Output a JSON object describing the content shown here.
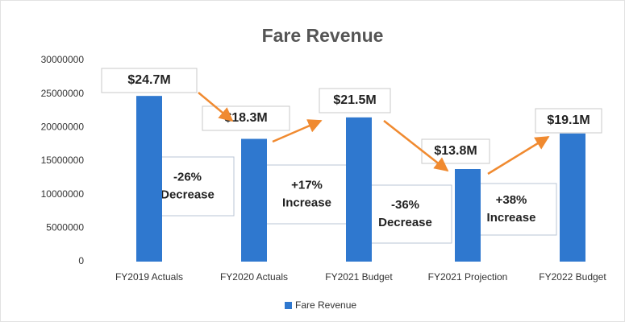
{
  "chart_data": {
    "type": "bar",
    "title": "Fare Revenue",
    "categories": [
      "FY2019 Actuals",
      "FY2020 Actuals",
      "FY2021 Budget",
      "FY2021 Projection",
      "FY2022 Budget"
    ],
    "series": [
      {
        "name": "Fare Revenue",
        "color": "#2f78cf",
        "values": [
          24700000,
          18300000,
          21500000,
          13800000,
          19100000
        ],
        "value_labels": [
          "$24.7M",
          "$18.3M",
          "$21.5M",
          "$13.8M",
          "$19.1M"
        ]
      }
    ],
    "annotations": [
      [
        "-26%",
        "Decrease"
      ],
      [
        "+17%",
        "Increase"
      ],
      [
        "-36%",
        "Decrease"
      ],
      [
        "+38%",
        "Increase"
      ]
    ],
    "ylim": [
      0,
      30000000
    ],
    "yticks": [
      0,
      5000000,
      10000000,
      15000000,
      20000000,
      25000000,
      30000000
    ],
    "grid": false,
    "legend": "bottom"
  }
}
